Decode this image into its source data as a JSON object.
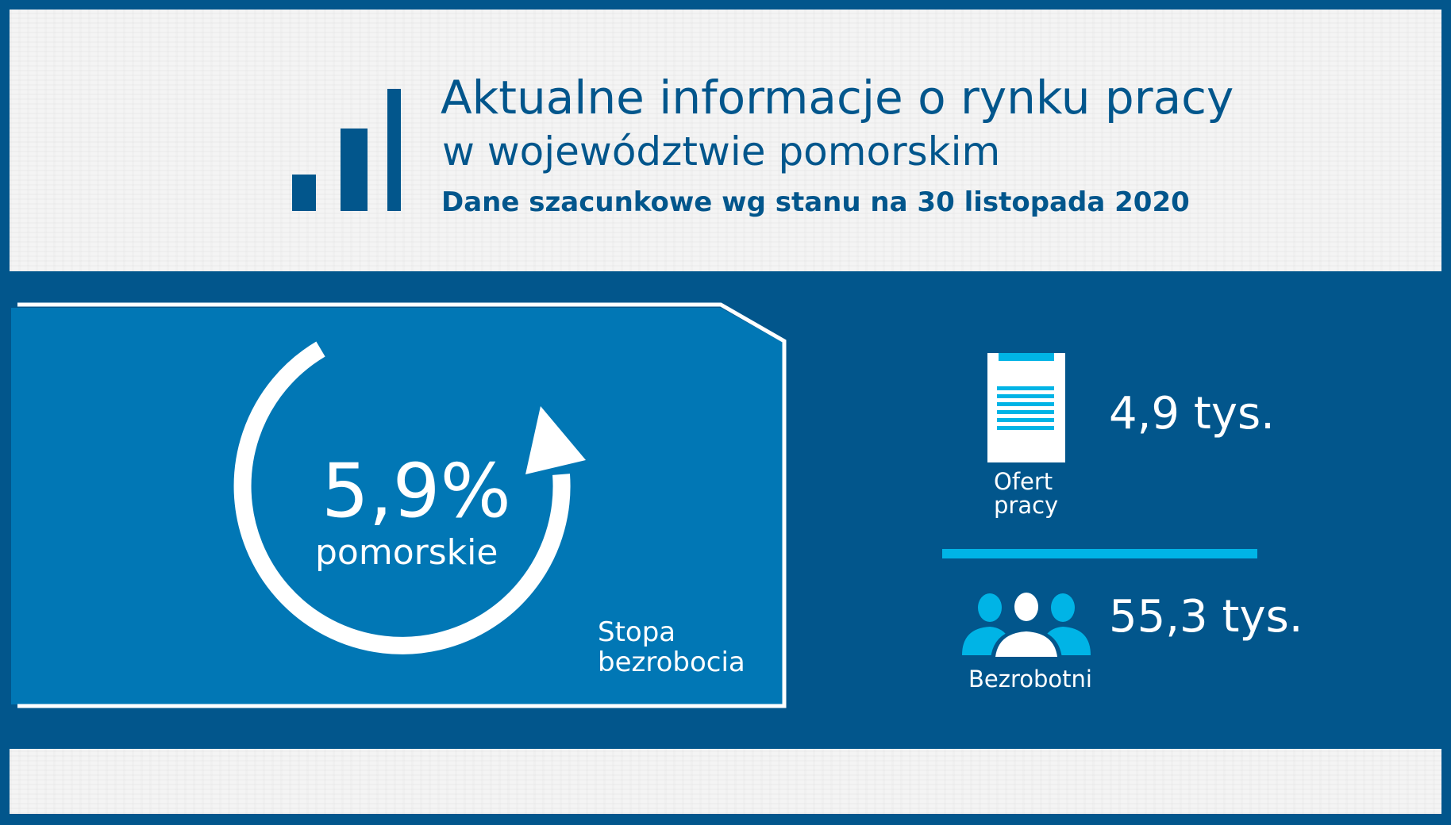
{
  "header": {
    "title_line1": "Aktualne informacje o rynku pracy",
    "title_line2": "w województwie pomorskim",
    "subtitle": "Dane szacunkowe wg stanu na 30 listopada 2020"
  },
  "unemployment_rate": {
    "value": "5,9%",
    "region": "pomorskie",
    "label": "Stopa bezrobocia"
  },
  "job_offers": {
    "value": "4,9 tys.",
    "label": "Ofert pracy"
  },
  "unemployed": {
    "value": "55,3 tys.",
    "label": "Bezrobotni"
  },
  "icons": {
    "header": "bar-chart-icon",
    "rate": "circular-arrow-icon",
    "offers": "document-icon",
    "unemployed": "people-group-icon"
  },
  "colors": {
    "background": "#02568c",
    "rate_panel": "#0177b5",
    "accent": "#00b4e6",
    "panel_light": "#f4f4f4",
    "text_light": "#ffffff"
  }
}
